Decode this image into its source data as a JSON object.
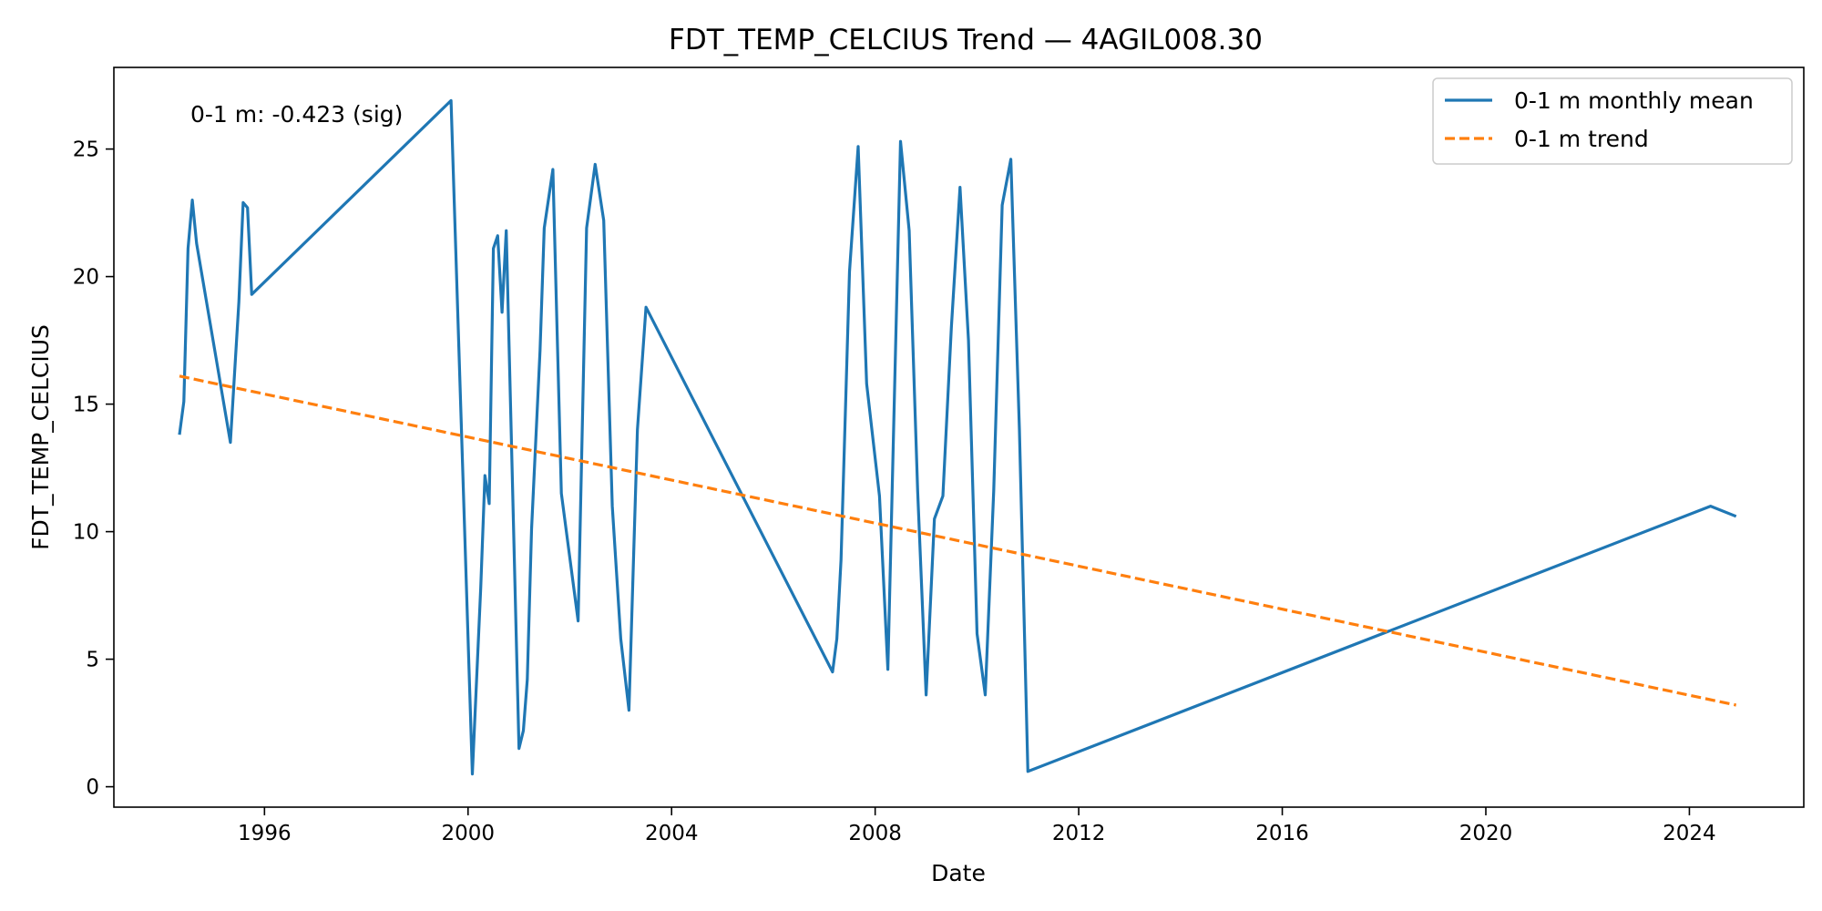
{
  "chart_data": {
    "type": "line",
    "title": "FDT_TEMP_CELCIUS Trend — 4AGIL008.30",
    "xlabel": "Date",
    "ylabel": "FDT_TEMP_CELCIUS",
    "x_type": "date",
    "xlim": [
      "1993-01-15",
      "2026-04-01"
    ],
    "ylim": [
      -0.8,
      28.2
    ],
    "x_ticks": [
      "1996",
      "2000",
      "2004",
      "2008",
      "2012",
      "2016",
      "2020",
      "2024"
    ],
    "y_ticks": [
      0,
      5,
      10,
      15,
      20,
      25
    ],
    "grid": false,
    "legend_position": "top-right",
    "annotation": "0-1 m: -0.423 (sig)",
    "colors": {
      "series": "#1f77b4",
      "trend": "#ff7f0e"
    },
    "series": [
      {
        "name": "0-1 m monthly mean",
        "style": "solid",
        "points": [
          [
            "1994-05-01",
            13.8
          ],
          [
            "1994-06-01",
            15.1
          ],
          [
            "1994-07-01",
            21.1
          ],
          [
            "1994-08-01",
            23.0
          ],
          [
            "1994-09-01",
            21.3
          ],
          [
            "1995-05-01",
            13.5
          ],
          [
            "1995-07-01",
            19.0
          ],
          [
            "1995-08-01",
            22.9
          ],
          [
            "1995-09-01",
            22.7
          ],
          [
            "1995-10-01",
            19.3
          ],
          [
            "1999-09-01",
            26.9
          ],
          [
            "2000-02-01",
            0.5
          ],
          [
            "2000-04-01",
            7.8
          ],
          [
            "2000-05-01",
            12.2
          ],
          [
            "2000-06-01",
            11.1
          ],
          [
            "2000-07-01",
            21.1
          ],
          [
            "2000-08-01",
            21.6
          ],
          [
            "2000-09-01",
            18.6
          ],
          [
            "2000-10-01",
            21.8
          ],
          [
            "2001-01-01",
            1.5
          ],
          [
            "2001-02-01",
            2.2
          ],
          [
            "2001-03-01",
            4.2
          ],
          [
            "2001-04-01",
            10.1
          ],
          [
            "2001-06-01",
            17.1
          ],
          [
            "2001-07-01",
            21.9
          ],
          [
            "2001-09-01",
            24.2
          ],
          [
            "2001-11-01",
            11.5
          ],
          [
            "2002-03-01",
            6.5
          ],
          [
            "2002-05-01",
            21.9
          ],
          [
            "2002-07-01",
            24.4
          ],
          [
            "2002-09-01",
            22.2
          ],
          [
            "2002-11-01",
            11.0
          ],
          [
            "2003-01-01",
            5.8
          ],
          [
            "2003-03-01",
            3.0
          ],
          [
            "2003-05-01",
            14.0
          ],
          [
            "2003-07-01",
            18.8
          ],
          [
            "2007-03-01",
            4.5
          ],
          [
            "2007-04-01",
            5.8
          ],
          [
            "2007-05-01",
            8.9
          ],
          [
            "2007-07-01",
            20.2
          ],
          [
            "2007-09-01",
            25.1
          ],
          [
            "2007-11-01",
            15.8
          ],
          [
            "2008-02-01",
            11.4
          ],
          [
            "2008-04-01",
            4.6
          ],
          [
            "2008-07-01",
            25.3
          ],
          [
            "2008-09-01",
            21.8
          ],
          [
            "2008-11-01",
            11.6
          ],
          [
            "2009-01-01",
            3.6
          ],
          [
            "2009-03-01",
            10.5
          ],
          [
            "2009-05-01",
            11.4
          ],
          [
            "2009-07-01",
            18.0
          ],
          [
            "2009-09-01",
            23.5
          ],
          [
            "2009-11-01",
            17.5
          ],
          [
            "2010-01-01",
            6.0
          ],
          [
            "2010-03-01",
            3.6
          ],
          [
            "2010-05-01",
            11.6
          ],
          [
            "2010-07-01",
            22.8
          ],
          [
            "2010-09-01",
            24.6
          ],
          [
            "2010-11-01",
            14.0
          ],
          [
            "2011-01-01",
            0.6
          ],
          [
            "2024-06-01",
            11.0
          ],
          [
            "2024-12-01",
            10.6
          ]
        ]
      },
      {
        "name": "0-1 m trend",
        "style": "dashed",
        "points": [
          [
            "1994-05-01",
            16.1
          ],
          [
            "2024-12-01",
            3.2
          ]
        ]
      }
    ]
  }
}
